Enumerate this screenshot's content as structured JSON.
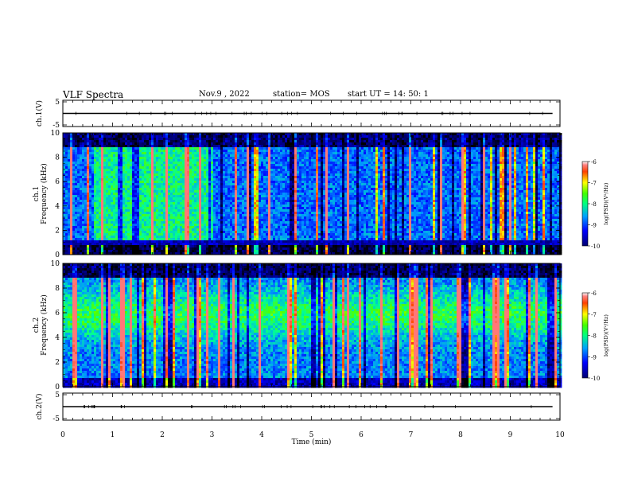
{
  "header": {
    "title": "VLF Spectra",
    "date": "Nov.9  , 2022",
    "station": "station= MOS",
    "start": "start  UT =   14: 50: 1"
  },
  "chart_data": [
    {
      "type": "line",
      "ylabel": "ch.1(V)",
      "yticks": [
        "5",
        "-5"
      ],
      "ylim": [
        -5,
        5
      ],
      "series": [
        {
          "x": [
            0,
            9.85
          ],
          "values": [
            0,
            0
          ]
        }
      ]
    },
    {
      "type": "heatmap",
      "ylabel": "ch.1\nFrequency (kHz)",
      "yticks": [
        "0",
        "2",
        "4",
        "6",
        "8",
        "10"
      ],
      "ylim": [
        0,
        10
      ],
      "xlim": [
        0,
        10
      ],
      "colorbar": {
        "label": "log(PSD)(V²/Hz)",
        "ticks": [
          "-6",
          "-7",
          "-8",
          "-9",
          "-10"
        ],
        "range": [
          -10,
          -6
        ]
      }
    },
    {
      "type": "heatmap",
      "ylabel": "ch.2\nFrequency (kHz)",
      "yticks": [
        "0",
        "2",
        "4",
        "6",
        "8",
        "10"
      ],
      "ylim": [
        0,
        10
      ],
      "xlim": [
        0,
        10
      ],
      "colorbar": {
        "label": "log(PSD)(V²/Hz)",
        "ticks": [
          "-6",
          "-7",
          "-8",
          "-9",
          "-10"
        ],
        "range": [
          -10,
          -6
        ]
      }
    },
    {
      "type": "line",
      "ylabel": "ch.2(V)",
      "yticks": [
        "5",
        "-5"
      ],
      "ylim": [
        -5,
        5
      ],
      "series": [
        {
          "x": [
            0,
            9.85
          ],
          "values": [
            0,
            0
          ]
        }
      ]
    }
  ],
  "xaxis": {
    "label": "Time  (min)",
    "ticks": [
      "0",
      "1",
      "2",
      "3",
      "4",
      "5",
      "6",
      "7",
      "8",
      "9",
      "10"
    ],
    "xlim": [
      0,
      10
    ]
  }
}
